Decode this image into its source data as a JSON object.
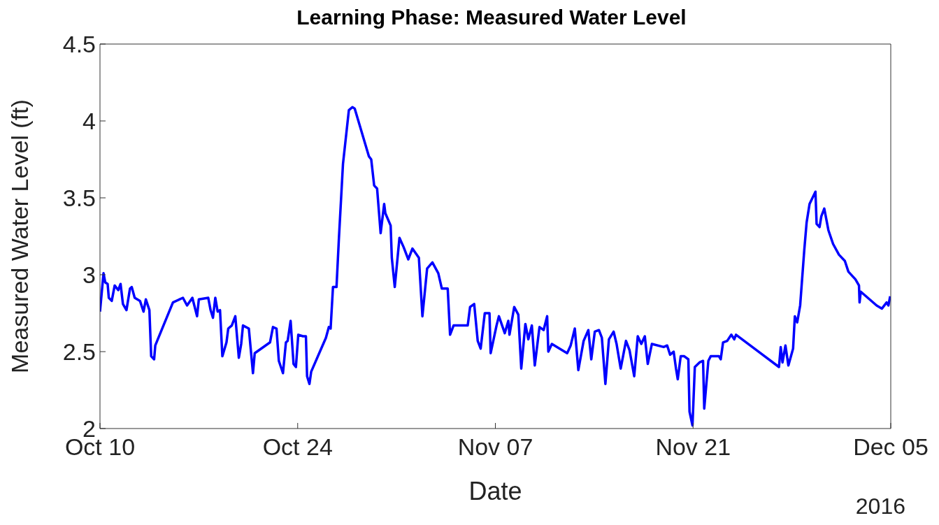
{
  "chart_data": {
    "type": "line",
    "title": "Learning Phase: Measured Water Level",
    "xlabel": "Date",
    "ylabel": "Measured Water Level (ft)",
    "annotations": [
      "2016"
    ],
    "xlim": [
      "2016-10-10",
      "2016-12-05"
    ],
    "xticks": [
      {
        "value": "2016-10-10",
        "label": "Oct 10"
      },
      {
        "value": "2016-10-24",
        "label": "Oct 24"
      },
      {
        "value": "2016-11-07",
        "label": "Nov 07"
      },
      {
        "value": "2016-11-21",
        "label": "Nov 21"
      },
      {
        "value": "2016-12-05",
        "label": "Dec 05"
      }
    ],
    "ylim": [
      2,
      4.5
    ],
    "yticks": [
      2,
      2.5,
      3,
      3.5,
      4,
      4.5
    ],
    "marker": "none",
    "line_style": "solid",
    "x": [
      "2016-10-10T00:00",
      "2016-10-10T06:00",
      "2016-10-10T09:00",
      "2016-10-10T13:00",
      "2016-10-10T15:00",
      "2016-10-10T20:00",
      "2016-10-11T01:00",
      "2016-10-11T07:00",
      "2016-10-11T11:00",
      "2016-10-11T15:00",
      "2016-10-11T21:00",
      "2016-10-12T03:00",
      "2016-10-12T06:00",
      "2016-10-12T11:00",
      "2016-10-12T20:00",
      "2016-10-13T02:00",
      "2016-10-13T06:00",
      "2016-10-13T12:00",
      "2016-10-13T15:00",
      "2016-10-13T20:00",
      "2016-10-13T22:00",
      "2016-10-15T04:00",
      "2016-10-15T21:00",
      "2016-10-16T04:00",
      "2016-10-16T13:00",
      "2016-10-16T21:00",
      "2016-10-17T00:00",
      "2016-10-17T16:00",
      "2016-10-17T20:00",
      "2016-10-18T00:00",
      "2016-10-18T04:00",
      "2016-10-18T08:00",
      "2016-10-18T12:00",
      "2016-10-18T16:00",
      "2016-10-18T23:00",
      "2016-10-19T02:00",
      "2016-10-19T08:00",
      "2016-10-19T14:00",
      "2016-10-19T20:00",
      "2016-10-20T00:00",
      "2016-10-20T03:00",
      "2016-10-20T13:00",
      "2016-10-20T20:00",
      "2016-10-20T23:00",
      "2016-10-22T01:00",
      "2016-10-22T06:00",
      "2016-10-22T12:00",
      "2016-10-22T16:00",
      "2016-10-22T23:00",
      "2016-10-23T04:00",
      "2016-10-23T07:00",
      "2016-10-23T12:00",
      "2016-10-23T17:00",
      "2016-10-23T21:00",
      "2016-10-24T01:00",
      "2016-10-24T09:00",
      "2016-10-24T14:00",
      "2016-10-24T16:00",
      "2016-10-24T20:00",
      "2016-10-24T23:00",
      "2016-10-26T00:00",
      "2016-10-26T05:00",
      "2016-10-26T08:00",
      "2016-10-26T12:00",
      "2016-10-26T18:00",
      "2016-10-26T22:00",
      "2016-10-27T05:00",
      "2016-10-27T15:00",
      "2016-10-27T21:00",
      "2016-10-28T01:00",
      "2016-10-29T01:00",
      "2016-10-29T05:00",
      "2016-10-29T10:00",
      "2016-10-29T15:00",
      "2016-10-29T21:00",
      "2016-10-30T03:00",
      "2016-10-30T05:00",
      "2016-10-30T14:00",
      "2016-10-30T16:00",
      "2016-10-30T21:00",
      "2016-10-31T05:00",
      "2016-10-31T12:00",
      "2016-10-31T20:00",
      "2016-11-01T03:00",
      "2016-11-01T14:00",
      "2016-11-01T20:00",
      "2016-11-02T04:00",
      "2016-11-02T13:00",
      "2016-11-02T23:00",
      "2016-11-03T05:00",
      "2016-11-03T15:00",
      "2016-11-03T19:00",
      "2016-11-04T01:00",
      "2016-11-05T01:00",
      "2016-11-05T05:00",
      "2016-11-05T12:00",
      "2016-11-05T18:00",
      "2016-11-05T23:00",
      "2016-11-06T06:00",
      "2016-11-06T14:00",
      "2016-11-06T16:00",
      "2016-11-07T02:00",
      "2016-11-07T06:00",
      "2016-11-07T16:00",
      "2016-11-07T22:00",
      "2016-11-08T00:00",
      "2016-11-08T08:00",
      "2016-11-08T15:00",
      "2016-11-08T20:00",
      "2016-11-09T03:00",
      "2016-11-09T08:00",
      "2016-11-09T14:00",
      "2016-11-09T19:00",
      "2016-11-10T03:00",
      "2016-11-10T10:00",
      "2016-11-10T16:00",
      "2016-11-10T18:00",
      "2016-11-11T00:00",
      "2016-11-12T02:00",
      "2016-11-12T08:00",
      "2016-11-12T15:00",
      "2016-11-12T21:00",
      "2016-11-13T06:00",
      "2016-11-13T14:00",
      "2016-11-13T19:00",
      "2016-11-14T01:00",
      "2016-11-14T08:00",
      "2016-11-14T13:00",
      "2016-11-14T19:00",
      "2016-11-15T01:00",
      "2016-11-15T09:00",
      "2016-11-15T14:00",
      "2016-11-15T21:00",
      "2016-11-16T06:00",
      "2016-11-16T12:00",
      "2016-11-16T20:00",
      "2016-11-17T02:00",
      "2016-11-17T08:00",
      "2016-11-17T14:00",
      "2016-11-17T19:00",
      "2016-11-18T02:00",
      "2016-11-18T22:00",
      "2016-11-19T04:00",
      "2016-11-19T09:00",
      "2016-11-19T15:00",
      "2016-11-19T19:00",
      "2016-11-19T22:00",
      "2016-11-20T03:00",
      "2016-11-20T09:00",
      "2016-11-20T16:00",
      "2016-11-20T18:00",
      "2016-11-20T23:00",
      "2016-11-21T03:00",
      "2016-11-21T11:00",
      "2016-11-21T17:00",
      "2016-11-21T19:00",
      "2016-11-22T02:00",
      "2016-11-22T06:00",
      "2016-11-22T20:00",
      "2016-11-22T23:00",
      "2016-11-23T03:00",
      "2016-11-23T10:00",
      "2016-11-23T17:00",
      "2016-11-23T22:00",
      "2016-11-24T01:00",
      "2016-11-27T02:00",
      "2016-11-27T05:00",
      "2016-11-27T08:00",
      "2016-11-27T13:00",
      "2016-11-27T18:00",
      "2016-11-28T02:00",
      "2016-11-28T05:00",
      "2016-11-28T09:00",
      "2016-11-28T14:00",
      "2016-11-28T21:00",
      "2016-11-29T01:00",
      "2016-11-29T06:00",
      "2016-11-29T11:00",
      "2016-11-29T16:00",
      "2016-11-29T18:00",
      "2016-11-29T23:00",
      "2016-11-30T02:00",
      "2016-11-30T07:00",
      "2016-11-30T14:00",
      "2016-11-30T22:00",
      "2016-12-01T08:00",
      "2016-12-01T18:00",
      "2016-12-02T00:00",
      "2016-12-02T12:00",
      "2016-12-02T18:00",
      "2016-12-02T19:00",
      "2016-12-02T21:00",
      "2016-12-04T00:00",
      "2016-12-04T09:00",
      "2016-12-04T17:00",
      "2016-12-04T20:00",
      "2016-12-04T23:00"
    ],
    "series": [
      {
        "color": "#0000ff",
        "values": [
          2.76,
          3.01,
          2.95,
          2.94,
          2.85,
          2.83,
          2.93,
          2.9,
          2.94,
          2.81,
          2.77,
          2.91,
          2.92,
          2.85,
          2.83,
          2.76,
          2.84,
          2.77,
          2.47,
          2.45,
          2.54,
          2.82,
          2.85,
          2.8,
          2.85,
          2.73,
          2.84,
          2.85,
          2.77,
          2.72,
          2.85,
          2.76,
          2.77,
          2.47,
          2.56,
          2.65,
          2.67,
          2.73,
          2.46,
          2.55,
          2.67,
          2.65,
          2.36,
          2.49,
          2.56,
          2.66,
          2.65,
          2.44,
          2.36,
          2.56,
          2.57,
          2.7,
          2.42,
          2.4,
          2.61,
          2.6,
          2.6,
          2.34,
          2.29,
          2.37,
          2.59,
          2.66,
          2.65,
          2.92,
          2.92,
          3.23,
          3.72,
          4.07,
          4.09,
          4.08,
          3.77,
          3.75,
          3.58,
          3.56,
          3.27,
          3.46,
          3.4,
          3.32,
          3.11,
          2.92,
          3.24,
          3.18,
          3.1,
          3.17,
          3.11,
          2.73,
          3.04,
          3.08,
          3.01,
          2.91,
          2.91,
          2.61,
          2.67,
          2.67,
          2.79,
          2.81,
          2.57,
          2.52,
          2.75,
          2.75,
          2.49,
          2.67,
          2.73,
          2.62,
          2.7,
          2.61,
          2.79,
          2.74,
          2.39,
          2.68,
          2.58,
          2.67,
          2.41,
          2.66,
          2.64,
          2.73,
          2.5,
          2.55,
          2.49,
          2.54,
          2.65,
          2.38,
          2.57,
          2.64,
          2.45,
          2.63,
          2.64,
          2.59,
          2.29,
          2.58,
          2.63,
          2.55,
          2.39,
          2.57,
          2.51,
          2.34,
          2.6,
          2.55,
          2.6,
          2.42,
          2.55,
          2.53,
          2.54,
          2.48,
          2.5,
          2.39,
          2.32,
          2.47,
          2.47,
          2.45,
          2.11,
          2.02,
          2.4,
          2.43,
          2.44,
          2.13,
          2.44,
          2.47,
          2.47,
          2.45,
          2.56,
          2.57,
          2.61,
          2.58,
          2.61,
          2.4,
          2.53,
          2.43,
          2.54,
          2.41,
          2.52,
          2.73,
          2.69,
          2.8,
          3.16,
          3.34,
          3.46,
          3.5,
          3.54,
          3.33,
          3.31,
          3.38,
          3.43,
          3.29,
          3.2,
          3.13,
          3.09,
          3.02,
          2.97,
          2.93,
          2.82,
          2.89,
          2.8,
          2.78,
          2.82,
          2.8,
          2.86
        ]
      }
    ]
  }
}
